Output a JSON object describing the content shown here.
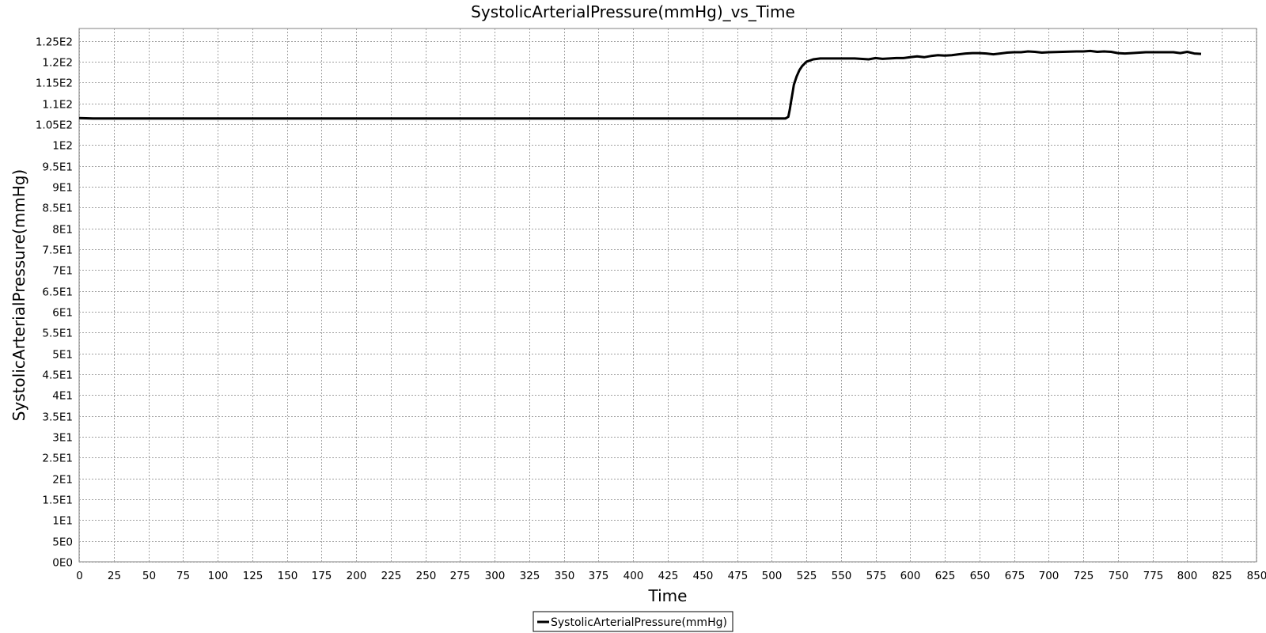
{
  "chart_data": {
    "type": "line",
    "title": "SystolicArterialPressure(mmHg)_vs_Time",
    "xlabel": "Time",
    "ylabel": "SystolicArterialPressure(mmHg)",
    "xlim": [
      0,
      850
    ],
    "ylim": [
      0,
      128
    ],
    "grid": true,
    "legend_position": "bottom-center",
    "x_ticks": [
      0,
      25,
      50,
      75,
      100,
      125,
      150,
      175,
      200,
      225,
      250,
      275,
      300,
      325,
      350,
      375,
      400,
      425,
      450,
      475,
      500,
      525,
      550,
      575,
      600,
      625,
      650,
      675,
      700,
      725,
      750,
      775,
      800,
      825,
      850
    ],
    "x_tick_labels": [
      "0",
      "25",
      "50",
      "75",
      "100",
      "125",
      "150",
      "175",
      "200",
      "225",
      "250",
      "275",
      "300",
      "325",
      "350",
      "375",
      "400",
      "425",
      "450",
      "475",
      "500",
      "525",
      "550",
      "575",
      "600",
      "625",
      "650",
      "675",
      "700",
      "725",
      "750",
      "775",
      "800",
      "825",
      "850"
    ],
    "y_ticks": [
      0,
      5,
      10,
      15,
      20,
      25,
      30,
      35,
      40,
      45,
      50,
      55,
      60,
      65,
      70,
      75,
      80,
      85,
      90,
      95,
      100,
      105,
      110,
      115,
      120,
      125
    ],
    "y_tick_labels": [
      "0E0",
      "5E0",
      "1E1",
      "1.5E1",
      "2E1",
      "2.5E1",
      "3E1",
      "3.5E1",
      "4E1",
      "4.5E1",
      "5E1",
      "5.5E1",
      "6E1",
      "6.5E1",
      "7E1",
      "7.5E1",
      "8E1",
      "8.5E1",
      "9E1",
      "9.5E1",
      "1E2",
      "1.05E2",
      "1.1E2",
      "1.15E2",
      "1.2E2",
      "1.25E2"
    ],
    "series": [
      {
        "name": "SystolicArterialPressure(mmHg)",
        "color": "#000000",
        "x": [
          0,
          10,
          25,
          50,
          75,
          100,
          125,
          150,
          175,
          200,
          225,
          250,
          275,
          300,
          325,
          350,
          375,
          400,
          425,
          450,
          475,
          500,
          510,
          512,
          513,
          514,
          515,
          516,
          518,
          520,
          522,
          525,
          530,
          535,
          540,
          550,
          560,
          570,
          575,
          580,
          585,
          590,
          595,
          600,
          605,
          610,
          615,
          620,
          625,
          630,
          635,
          640,
          645,
          650,
          655,
          660,
          665,
          670,
          675,
          680,
          685,
          690,
          695,
          700,
          710,
          720,
          725,
          730,
          735,
          740,
          745,
          750,
          755,
          760,
          770,
          780,
          790,
          795,
          800,
          805,
          810
        ],
        "y": [
          106.5,
          106.4,
          106.4,
          106.4,
          106.4,
          106.4,
          106.4,
          106.4,
          106.4,
          106.4,
          106.4,
          106.4,
          106.4,
          106.4,
          106.4,
          106.4,
          106.4,
          106.4,
          106.4,
          106.4,
          106.4,
          106.4,
          106.4,
          106.8,
          108.5,
          110.5,
          112.5,
          114.5,
          116.5,
          118.0,
          119.0,
          120.0,
          120.6,
          120.8,
          120.8,
          120.8,
          120.8,
          120.6,
          120.9,
          120.7,
          120.8,
          120.9,
          120.9,
          121.1,
          121.3,
          121.1,
          121.4,
          121.6,
          121.5,
          121.6,
          121.8,
          122.0,
          122.1,
          122.1,
          122.0,
          121.8,
          122.0,
          122.2,
          122.3,
          122.3,
          122.5,
          122.4,
          122.2,
          122.3,
          122.4,
          122.5,
          122.5,
          122.6,
          122.4,
          122.5,
          122.4,
          122.1,
          122.0,
          122.1,
          122.3,
          122.3,
          122.3,
          122.1,
          122.4,
          122.0,
          121.9
        ]
      }
    ]
  }
}
